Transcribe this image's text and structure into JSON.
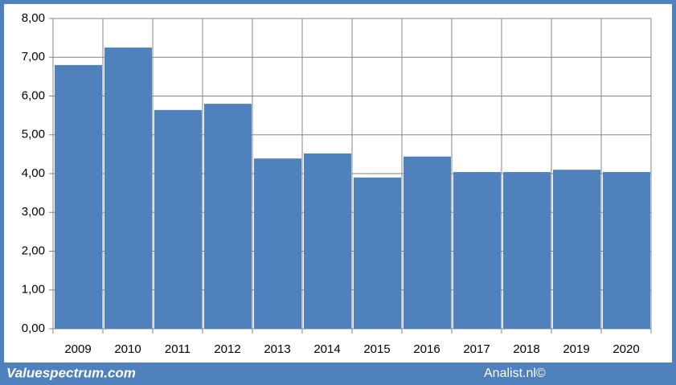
{
  "chart_data": {
    "type": "bar",
    "categories": [
      "2009",
      "2010",
      "2011",
      "2012",
      "2013",
      "2014",
      "2015",
      "2016",
      "2017",
      "2018",
      "2019",
      "2020"
    ],
    "values": [
      6.8,
      7.25,
      5.64,
      5.8,
      4.39,
      4.52,
      3.9,
      4.44,
      4.04,
      4.04,
      4.1,
      4.04
    ],
    "color": "#4f81bd",
    "ylim": [
      0,
      8
    ],
    "yticks": [
      {
        "value": 0,
        "label": "0,00"
      },
      {
        "value": 1,
        "label": "1,00"
      },
      {
        "value": 2,
        "label": "2,00"
      },
      {
        "value": 3,
        "label": "3,00"
      },
      {
        "value": 4,
        "label": "4,00"
      },
      {
        "value": 5,
        "label": "5,00"
      },
      {
        "value": 6,
        "label": "6,00"
      },
      {
        "value": 7,
        "label": "7,00"
      },
      {
        "value": 8,
        "label": "8,00"
      }
    ],
    "grid": true,
    "footer_left": "Valuespectrum.com",
    "footer_right": "Analist.nl©"
  }
}
